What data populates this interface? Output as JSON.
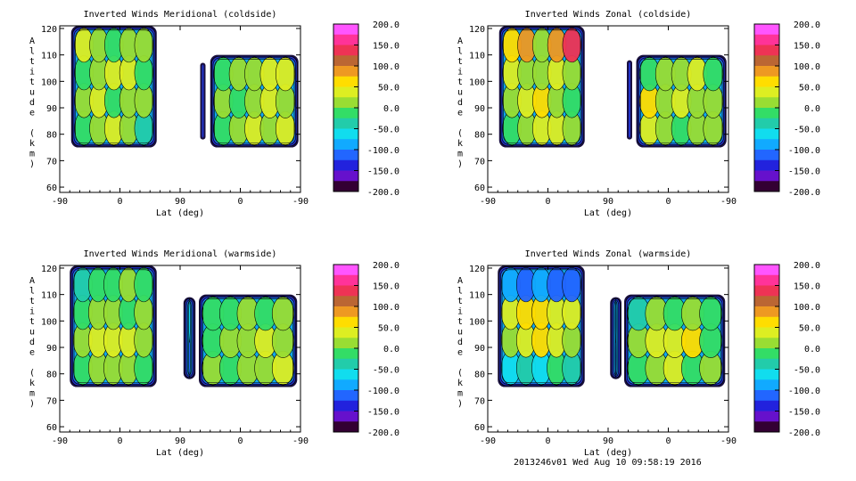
{
  "footer": "2013246v01 Wed Aug 10 09:58:19 2016",
  "colorbar": {
    "labels": [
      "200.0",
      "150.0",
      "100.0",
      "50.0",
      "0.0",
      "-50.0",
      "-100.0",
      "-150.0",
      "-200.0"
    ],
    "colors": [
      "#ff55ff",
      "#ff3399",
      "#ee3355",
      "#bb6633",
      "#ee9922",
      "#ffdd00",
      "#ddee22",
      "#99dd33",
      "#33dd66",
      "#22ccaa",
      "#11ddee",
      "#11aaff",
      "#2266ff",
      "#2222dd",
      "#6611cc",
      "#330033"
    ]
  },
  "chart_data": [
    {
      "type": "heatmap",
      "title": "Inverted Winds Meridional (coldside)",
      "xlabel": "Lat (deg)",
      "ylabel": "Altitude (km)",
      "x_ticks": [
        "-90",
        "0",
        "90",
        "0",
        "-90"
      ],
      "y_ticks": [
        "60",
        "70",
        "80",
        "90",
        "100",
        "110",
        "120"
      ],
      "ylim": [
        58,
        121
      ],
      "zlim": [
        -200,
        200
      ],
      "blocks": [
        {
          "x0": -73,
          "x1": 55,
          "z0": 75,
          "z1": 121,
          "base": 5,
          "cells": [
            [
              -5,
              15,
              35,
              5,
              -25
            ],
            [
              20,
              45,
              -5,
              15,
              10
            ],
            [
              -15,
              25,
              30,
              45,
              -5
            ],
            [
              35,
              5,
              -10,
              25,
              15
            ]
          ]
        },
        {
          "x0": 120,
          "x1": 128,
          "z0": 78,
          "z1": 107,
          "base": -100,
          "cells": [
            [
              -120
            ],
            [
              -90
            ]
          ]
        },
        {
          "x0": 135,
          "x1": 267,
          "z0": 75,
          "z1": 110,
          "base": 10,
          "cells": [
            [
              0,
              25,
              40,
              15,
              35
            ],
            [
              15,
              -10,
              20,
              45,
              10
            ],
            [
              -5,
              20,
              5,
              30,
              50
            ]
          ]
        }
      ]
    },
    {
      "type": "heatmap",
      "title": "Inverted Winds Zonal (coldside)",
      "xlabel": "Lat (deg)",
      "ylabel": "Altitude (km)",
      "x_ticks": [
        "-90",
        "0",
        "90",
        "0",
        "-90"
      ],
      "y_ticks": [
        "60",
        "70",
        "80",
        "90",
        "100",
        "110",
        "120"
      ],
      "ylim": [
        58,
        121
      ],
      "zlim": [
        -200,
        200
      ],
      "blocks": [
        {
          "x0": -73,
          "x1": 55,
          "z0": 75,
          "z1": 121,
          "base": 0,
          "cells": [
            [
              -20,
              10,
              40,
              30,
              5
            ],
            [
              5,
              35,
              60,
              20,
              -10
            ],
            [
              30,
              15,
              5,
              45,
              25
            ],
            [
              55,
              80,
              20,
              90,
              140
            ]
          ]
        },
        {
          "x0": 118,
          "x1": 126,
          "z0": 78,
          "z1": 108,
          "base": -110,
          "cells": [
            [
              -130
            ],
            [
              -90
            ]
          ]
        },
        {
          "x0": 132,
          "x1": 267,
          "z0": 75,
          "z1": 110,
          "base": 0,
          "cells": [
            [
              30,
              5,
              -15,
              20,
              10
            ],
            [
              60,
              15,
              35,
              5,
              25
            ],
            [
              -10,
              20,
              10,
              40,
              -5
            ]
          ]
        }
      ]
    },
    {
      "type": "heatmap",
      "title": "Inverted Winds Meridional (warmside)",
      "xlabel": "Lat (deg)",
      "ylabel": "Altitude (km)",
      "x_ticks": [
        "-90",
        "0",
        "90",
        "0",
        "-90"
      ],
      "y_ticks": [
        "60",
        "70",
        "80",
        "90",
        "100",
        "110",
        "120"
      ],
      "ylim": [
        58,
        121
      ],
      "zlim": [
        -200,
        200
      ],
      "blocks": [
        {
          "x0": -75,
          "x1": 55,
          "z0": 75,
          "z1": 121,
          "base": 0,
          "cells": [
            [
              -10,
              15,
              5,
              25,
              -5
            ],
            [
              20,
              40,
              30,
              45,
              15
            ],
            [
              -15,
              5,
              10,
              -5,
              20
            ],
            [
              -30,
              -10,
              -20,
              5,
              -15
            ]
          ]
        },
        {
          "x0": 95,
          "x1": 113,
          "z0": 78,
          "z1": 109,
          "base": -90,
          "cells": [
            [
              -110
            ],
            [
              -70
            ]
          ]
        },
        {
          "x0": 118,
          "x1": 265,
          "z0": 75,
          "z1": 110,
          "base": 0,
          "cells": [
            [
              15,
              -5,
              25,
              10,
              30
            ],
            [
              -10,
              20,
              5,
              35,
              15
            ],
            [
              0,
              -15,
              10,
              -5,
              20
            ]
          ]
        }
      ]
    },
    {
      "type": "heatmap",
      "title": "Inverted Winds Zonal (warmside)",
      "xlabel": "Lat (deg)",
      "ylabel": "Altitude (km)",
      "x_ticks": [
        "-90",
        "0",
        "90",
        "0",
        "-90"
      ],
      "y_ticks": [
        "60",
        "70",
        "80",
        "90",
        "100",
        "110",
        "120"
      ],
      "ylim": [
        58,
        121
      ],
      "zlim": [
        -200,
        200
      ],
      "blocks": [
        {
          "x0": -75,
          "x1": 55,
          "z0": 75,
          "z1": 121,
          "base": 0,
          "cells": [
            [
              -60,
              -30,
              -50,
              -20,
              -45
            ],
            [
              10,
              35,
              55,
              40,
              15
            ],
            [
              45,
              60,
              75,
              30,
              50
            ],
            [
              -80,
              -110,
              -90,
              -120,
              -100
            ]
          ]
        },
        {
          "x0": 93,
          "x1": 110,
          "z0": 78,
          "z1": 109,
          "base": -100,
          "cells": [
            [
              -120
            ],
            [
              -90
            ]
          ]
        },
        {
          "x0": 114,
          "x1": 265,
          "z0": 75,
          "z1": 110,
          "base": 0,
          "cells": [
            [
              -20,
              20,
              40,
              -5,
              15
            ],
            [
              10,
              45,
              30,
              55,
              -10
            ],
            [
              -30,
              5,
              -15,
              20,
              0
            ]
          ]
        }
      ]
    }
  ]
}
